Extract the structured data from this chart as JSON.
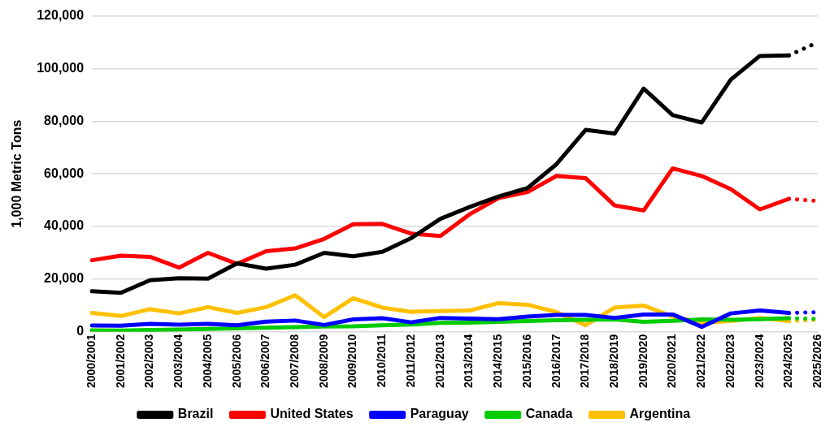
{
  "chart_data": {
    "type": "line",
    "ylabel": "1,000 Metric Tons",
    "categories": [
      "2000/2001",
      "2001/2002",
      "2002/2003",
      "2003/2004",
      "2004/2005",
      "2005/2006",
      "2006/2007",
      "2007/2008",
      "2008/2009",
      "2009/2010",
      "2010/2011",
      "2011/2012",
      "2012/2013",
      "2013/2014",
      "2014/2015",
      "2015/2016",
      "2016/2017",
      "2017/2018",
      "2018/2019",
      "2019/2020",
      "2020/2021",
      "2021/2022",
      "2022/2023",
      "2023/2024",
      "2024/2025",
      "2025/2026"
    ],
    "series": [
      {
        "name": "Brazil",
        "color": "#000000",
        "values": [
          15400,
          14800,
          19600,
          20400,
          20200,
          26000,
          24000,
          25500,
          30000,
          28700,
          30400,
          35600,
          42900,
          47400,
          51400,
          54600,
          63700,
          76700,
          75300,
          92400,
          82300,
          79500,
          95800,
          104800,
          105000,
          null
        ]
      },
      {
        "name": "United States",
        "color": "#ff0000",
        "values": [
          27200,
          28900,
          28500,
          24400,
          30000,
          25800,
          30600,
          31700,
          35300,
          40900,
          41000,
          37300,
          36400,
          44600,
          50800,
          53100,
          59200,
          58400,
          48000,
          46100,
          62100,
          59200,
          54200,
          46500,
          50500,
          null
        ]
      },
      {
        "name": "Paraguay",
        "color": "#0000ff",
        "values": [
          2400,
          2300,
          3000,
          2700,
          3000,
          2500,
          3900,
          4300,
          2600,
          4700,
          5200,
          3600,
          5300,
          5000,
          4800,
          5800,
          6400,
          6400,
          5300,
          6600,
          6600,
          1900,
          7000,
          8100,
          7200,
          null
        ]
      },
      {
        "name": "Canada",
        "color": "#00cc00",
        "values": [
          600,
          500,
          700,
          900,
          1100,
          1300,
          1600,
          1800,
          2000,
          2100,
          2500,
          2800,
          3400,
          3500,
          3800,
          4100,
          4400,
          4600,
          4700,
          3800,
          4200,
          4700,
          4600,
          4800,
          5200,
          null
        ]
      },
      {
        "name": "Argentina",
        "color": "#ffc000",
        "values": [
          7200,
          6000,
          8600,
          7000,
          9400,
          7200,
          9400,
          13900,
          5600,
          12800,
          9200,
          7600,
          7900,
          8100,
          10900,
          10300,
          7500,
          2500,
          9200,
          10000,
          5800,
          3400,
          4100,
          5300,
          4100,
          null
        ]
      },
      {
        "color": "#000000",
        "line_style": "dotted",
        "values": [
          null,
          null,
          null,
          null,
          null,
          null,
          null,
          null,
          null,
          null,
          null,
          null,
          null,
          null,
          null,
          null,
          null,
          null,
          null,
          null,
          null,
          null,
          null,
          null,
          105000,
          110000
        ]
      },
      {
        "color": "#ff0000",
        "line_style": "dotted",
        "values": [
          null,
          null,
          null,
          null,
          null,
          null,
          null,
          null,
          null,
          null,
          null,
          null,
          null,
          null,
          null,
          null,
          null,
          null,
          null,
          null,
          null,
          null,
          null,
          null,
          50500,
          49700
        ]
      },
      {
        "color": "#0000ff",
        "line_style": "dotted",
        "values": [
          null,
          null,
          null,
          null,
          null,
          null,
          null,
          null,
          null,
          null,
          null,
          null,
          null,
          null,
          null,
          null,
          null,
          null,
          null,
          null,
          null,
          null,
          null,
          null,
          7200,
          7500
        ]
      },
      {
        "color": "#00cc00",
        "line_style": "dotted",
        "values": [
          null,
          null,
          null,
          null,
          null,
          null,
          null,
          null,
          null,
          null,
          null,
          null,
          null,
          null,
          null,
          null,
          null,
          null,
          null,
          null,
          null,
          null,
          null,
          null,
          5200,
          4900
        ]
      },
      {
        "color": "#ffc000",
        "line_style": "dotted",
        "values": [
          null,
          null,
          null,
          null,
          null,
          null,
          null,
          null,
          null,
          null,
          null,
          null,
          null,
          null,
          null,
          null,
          null,
          null,
          null,
          null,
          null,
          null,
          null,
          null,
          4100,
          4500
        ]
      }
    ],
    "ylim": [
      0,
      120000
    ],
    "yticks": [
      {
        "value": 0,
        "label": "0"
      },
      {
        "value": 20000,
        "label": "20,000"
      },
      {
        "value": 40000,
        "label": "40,000"
      },
      {
        "value": 60000,
        "label": "60,000"
      },
      {
        "value": 80000,
        "label": "80,000"
      },
      {
        "value": 100000,
        "label": "100,000"
      },
      {
        "value": 120000,
        "label": "120,000"
      }
    ],
    "grid": "y",
    "legend": "bottom",
    "marker": "none",
    "line_style": "solid"
  }
}
